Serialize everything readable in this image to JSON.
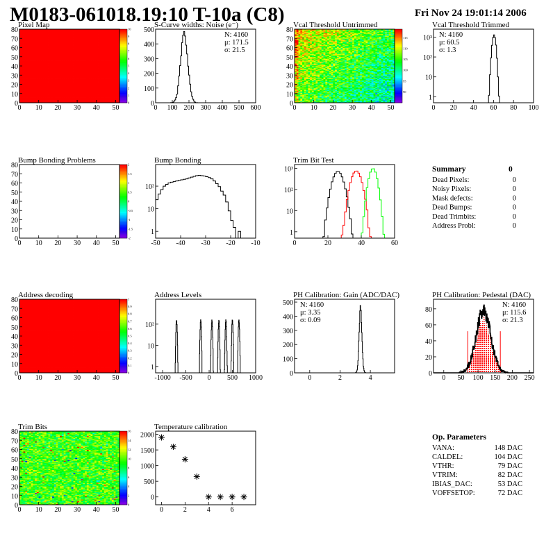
{
  "header": {
    "title": "M0183-061018.19:10 T-10a (C8)",
    "date": "Fri Nov 24 19:01:14 2006"
  },
  "colors": {
    "line": "#000000",
    "red": "#ff0000",
    "green": "#00ff00"
  },
  "panels": [
    {
      "title": "Pixel Map",
      "type": "heatmap",
      "map": "solid-red",
      "xlim": [
        0,
        52
      ],
      "ylim": [
        0,
        80
      ],
      "xticks": [
        "0",
        "10",
        "20",
        "30",
        "40",
        "50"
      ],
      "yticks": [
        "0",
        "10",
        "20",
        "30",
        "40",
        "50",
        "60",
        "70",
        "80"
      ],
      "palette": {
        "range": [
          0,
          10
        ],
        "labels": [
          "0",
          "1",
          "2",
          "3",
          "4",
          "5",
          "6",
          "7",
          "8",
          "9",
          "10"
        ]
      }
    },
    {
      "title": "S-Curve widths: Noise (e⁻)",
      "type": "hist",
      "xlim": [
        0,
        600
      ],
      "ylim": [
        0,
        500
      ],
      "xticks": [
        "0",
        "100",
        "200",
        "300",
        "400",
        "500",
        "600"
      ],
      "yticks": [
        "0",
        "100",
        "200",
        "300",
        "400",
        "500"
      ],
      "series": [
        {
          "kind": "gauss",
          "mean": 171.5,
          "sigma": 21.5,
          "n": 4160,
          "binw": 6,
          "color": "#000000"
        }
      ],
      "stats": {
        "pos": "top-right",
        "lines": [
          "N: 4160",
          "μ: 171.5",
          "σ: 21.5"
        ]
      }
    },
    {
      "title": "Vcal Threshold Untrimmed",
      "type": "heatmap",
      "map": "vcal",
      "xlim": [
        0,
        52
      ],
      "ylim": [
        0,
        80
      ],
      "xticks": [
        "0",
        "10",
        "20",
        "30",
        "40",
        "50"
      ],
      "yticks": [
        "0",
        "10",
        "20",
        "30",
        "40",
        "50",
        "60",
        "70",
        "80"
      ],
      "palette": {
        "range": [
          85,
          119
        ],
        "labels": [
          "90",
          "95",
          "100",
          "105",
          "110",
          "115"
        ]
      }
    },
    {
      "title": "Vcal Threshold Trimmed",
      "type": "hist",
      "log": true,
      "xlim": [
        0,
        100
      ],
      "ylim": [
        0.5,
        2500
      ],
      "xticks": [
        "0",
        "20",
        "40",
        "60",
        "80",
        "100"
      ],
      "yticks": [
        "1",
        "10",
        "10²",
        "10³"
      ],
      "ytick_values": [
        1,
        10,
        100,
        1000
      ],
      "series": [
        {
          "kind": "gauss",
          "mean": 60.5,
          "sigma": 1.3,
          "n": 4160,
          "binw": 1,
          "color": "#000000"
        }
      ],
      "stats": {
        "pos": "top-left",
        "lines": [
          "N: 4160",
          "μ: 60.5",
          "σ:  1.3"
        ]
      }
    },
    {
      "title": "Bump Bonding Problems",
      "type": "heatmap",
      "map": "empty",
      "xlim": [
        0,
        52
      ],
      "ylim": [
        0,
        80
      ],
      "xticks": [
        "0",
        "10",
        "20",
        "30",
        "40",
        "50"
      ],
      "yticks": [
        "0",
        "10",
        "20",
        "30",
        "40",
        "50",
        "60",
        "70",
        "80"
      ],
      "palette": {
        "range": [
          -2,
          2
        ],
        "labels": [
          "-2",
          "-1.5",
          "-1",
          "-0.5",
          "0",
          "0.5",
          "1",
          "1.5",
          "2"
        ]
      }
    },
    {
      "title": "Bump Bonding",
      "type": "hist",
      "log": true,
      "xlim": [
        -50,
        -10
      ],
      "ylim": [
        0.5,
        900
      ],
      "xticks": [
        "-50",
        "-40",
        "-30",
        "-20",
        "-10"
      ],
      "yticks": [
        "1",
        "10",
        "10²"
      ],
      "ytick_values": [
        1,
        10,
        100
      ],
      "series": [
        {
          "kind": "bins",
          "start": -50,
          "binw": 1,
          "color": "#000000",
          "values": [
            25,
            45,
            70,
            100,
            120,
            140,
            150,
            160,
            170,
            180,
            190,
            200,
            210,
            230,
            250,
            270,
            290,
            300,
            290,
            280,
            260,
            240,
            210,
            170,
            130,
            95,
            60,
            40,
            20,
            8,
            3,
            1.5,
            0,
            1,
            0,
            0,
            0,
            0,
            0,
            0
          ]
        }
      ]
    },
    {
      "title": "Trim Bit Test",
      "type": "hist",
      "log": true,
      "xlim": [
        0,
        60
      ],
      "ylim": [
        0.5,
        1500
      ],
      "xticks": [
        "0",
        "20",
        "40",
        "60"
      ],
      "yticks": [
        "1",
        "10",
        "10²",
        "10³"
      ],
      "ytick_values": [
        1,
        10,
        100,
        1000
      ],
      "series": [
        {
          "kind": "gauss",
          "mean": 26,
          "sigma": 2.3,
          "n": 4160,
          "binw": 1,
          "color": "#000000"
        },
        {
          "kind": "gauss",
          "mean": 37,
          "sigma": 2.2,
          "n": 4160,
          "binw": 1,
          "color": "#ff0000"
        },
        {
          "kind": "gauss",
          "mean": 47,
          "sigma": 1.7,
          "n": 4160,
          "binw": 1,
          "color": "#00ff00"
        }
      ]
    },
    {
      "type": "summary",
      "title": "Summary",
      "total": "0",
      "items": [
        {
          "label": "Dead Pixels:",
          "value": "0"
        },
        {
          "label": "Noisy Pixels:",
          "value": "0"
        },
        {
          "label": "Mask defects:",
          "value": "0"
        },
        {
          "label": "Dead Bumps:",
          "value": "0"
        },
        {
          "label": "Dead Trimbits:",
          "value": "0"
        },
        {
          "label": "Address Probl:",
          "value": "0"
        }
      ]
    },
    {
      "title": "Address decoding",
      "type": "heatmap",
      "map": "solid-red",
      "xlim": [
        0,
        52
      ],
      "ylim": [
        0,
        80
      ],
      "xticks": [
        "0",
        "10",
        "20",
        "30",
        "40",
        "50"
      ],
      "yticks": [
        "0",
        "10",
        "20",
        "30",
        "40",
        "50",
        "60",
        "70",
        "80"
      ],
      "palette": {
        "range": [
          0,
          1
        ],
        "labels": [
          "0",
          "0.1",
          "0.2",
          "0.3",
          "0.4",
          "0.5",
          "0.6",
          "0.7",
          "0.8",
          "0.9",
          "1"
        ]
      }
    },
    {
      "title": "Address Levels",
      "type": "hist",
      "log": true,
      "xlim": [
        -1150,
        1000
      ],
      "ylim": [
        0.5,
        1500
      ],
      "xticks": [
        "-1000",
        "-500",
        "0",
        "500",
        "1000"
      ],
      "yticks": [
        "1",
        "10",
        "10²"
      ],
      "ytick_values": [
        1,
        10,
        100
      ],
      "series": [
        {
          "kind": "peaks",
          "centers": [
            -700,
            -180,
            60,
            210,
            360,
            500,
            640
          ],
          "sigma": 9,
          "n": 594,
          "binw": 6,
          "color": "#000000"
        }
      ]
    },
    {
      "title": "PH Calibration: Gain (ADC/DAC)",
      "type": "hist",
      "xlim": [
        -1,
        5.6
      ],
      "ylim": [
        0,
        520
      ],
      "xticks": [
        "0",
        "2",
        "4"
      ],
      "yticks": [
        "0",
        "100",
        "200",
        "300",
        "400",
        "500"
      ],
      "series": [
        {
          "kind": "gauss",
          "mean": 3.35,
          "sigma": 0.09,
          "n": 4160,
          "binw": 0.025,
          "color": "#000000"
        }
      ],
      "stats": {
        "pos": "top-left",
        "lines": [
          "N: 4160",
          "μ: 3.35",
          "σ: 0.09"
        ]
      }
    },
    {
      "title": "PH Calibration: Pedestal (DAC)",
      "type": "hist",
      "xlim": [
        -30,
        262
      ],
      "ylim": [
        0,
        92
      ],
      "xticks": [
        "0",
        "50",
        "100",
        "150",
        "200",
        "250"
      ],
      "yticks": [
        "0",
        "20",
        "40",
        "60",
        "80"
      ],
      "series": [
        {
          "kind": "gauss",
          "mean": 115.6,
          "sigma": 21.3,
          "n": 4160,
          "binw": 1,
          "color": "#000000",
          "fill_range": [
            70,
            165
          ],
          "fill_color": "#ff0000"
        }
      ],
      "stats": {
        "pos": "top-right",
        "lines": [
          "N: 4160",
          "μ: 115.6",
          "σ: 21.3"
        ],
        "red_from": 1
      }
    },
    {
      "title": "Trim Bits",
      "type": "heatmap",
      "map": "trim",
      "xlim": [
        0,
        52
      ],
      "ylim": [
        0,
        80
      ],
      "xticks": [
        "0",
        "10",
        "20",
        "30",
        "40",
        "50"
      ],
      "yticks": [
        "0",
        "10",
        "20",
        "30",
        "40",
        "50",
        "60",
        "70",
        "80"
      ],
      "palette": {
        "range": [
          0,
          16
        ],
        "labels": [
          "0",
          "2",
          "4",
          "6",
          "8",
          "10",
          "12",
          "14",
          "16"
        ]
      }
    },
    {
      "title": "Temperature calibration",
      "type": "points",
      "xlim": [
        -0.5,
        8
      ],
      "ylim": [
        -250,
        2100
      ],
      "xticks": [
        "0",
        "2",
        "4",
        "6"
      ],
      "yticks": [
        "0",
        "500",
        "1000",
        "1500",
        "2000"
      ],
      "x": [
        0,
        1,
        2,
        3,
        4,
        5,
        6,
        7
      ],
      "y": [
        1900,
        1600,
        1200,
        650,
        0,
        0,
        0,
        0
      ]
    },
    {
      "type": "empty"
    },
    {
      "type": "params",
      "title": "Op. Parameters",
      "items": [
        {
          "label": "VANA:",
          "value": "148 DAC"
        },
        {
          "label": "CALDEL:",
          "value": "104 DAC"
        },
        {
          "label": "VTHR:",
          "value": "79 DAC"
        },
        {
          "label": "VTRIM:",
          "value": "82 DAC"
        },
        {
          "label": "IBIAS_DAC:",
          "value": "53 DAC"
        },
        {
          "label": "VOFFSETOP:",
          "value": "72 DAC"
        }
      ]
    }
  ]
}
